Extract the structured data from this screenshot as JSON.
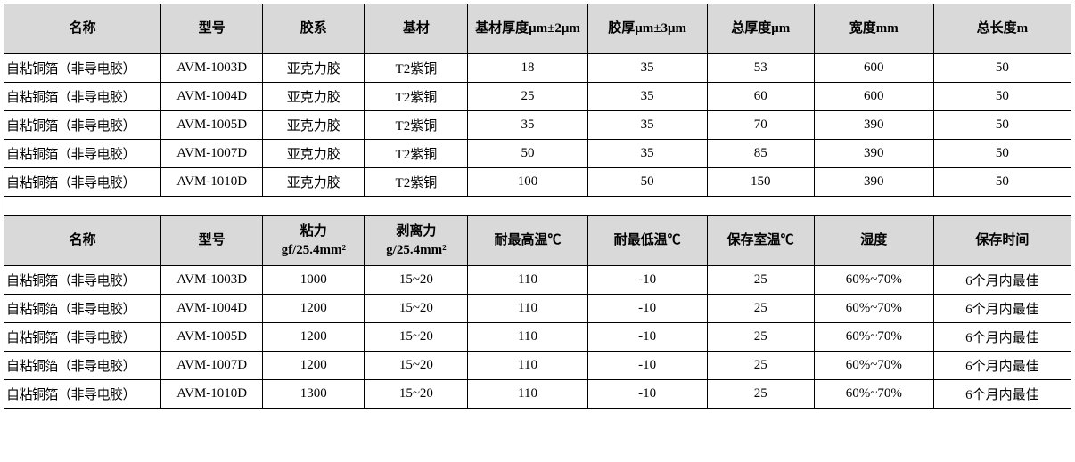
{
  "table1": {
    "headers": [
      "名称",
      "型号",
      "胶系",
      "基材",
      "基材厚度μm±2μm",
      "胶厚μm±3μm",
      "总厚度μm",
      "宽度mm",
      "总长度m"
    ],
    "rows": [
      [
        "自粘铜箔（非导电胶）",
        "AVM-1003D",
        "亚克力胶",
        "T2紫铜",
        "18",
        "35",
        "53",
        "600",
        "50"
      ],
      [
        "自粘铜箔（非导电胶）",
        "AVM-1004D",
        "亚克力胶",
        "T2紫铜",
        "25",
        "35",
        "60",
        "600",
        "50"
      ],
      [
        "自粘铜箔（非导电胶）",
        "AVM-1005D",
        "亚克力胶",
        "T2紫铜",
        "35",
        "35",
        "70",
        "390",
        "50"
      ],
      [
        "自粘铜箔（非导电胶）",
        "AVM-1007D",
        "亚克力胶",
        "T2紫铜",
        "50",
        "35",
        "85",
        "390",
        "50"
      ],
      [
        "自粘铜箔（非导电胶）",
        "AVM-1010D",
        "亚克力胶",
        "T2紫铜",
        "100",
        "50",
        "150",
        "390",
        "50"
      ]
    ]
  },
  "table2": {
    "headers": [
      "名称",
      "型号",
      "粘力\ngf/25.4mm²",
      "剥离力\ng/25.4mm²",
      "耐最高温℃",
      "耐最低温℃",
      "保存室温℃",
      "湿度",
      "保存时间"
    ],
    "rows": [
      [
        "自粘铜箔（非导电胶）",
        "AVM-1003D",
        "1000",
        "15~20",
        "110",
        "-10",
        "25",
        "60%~70%",
        "6个月内最佳"
      ],
      [
        "自粘铜箔（非导电胶）",
        "AVM-1004D",
        "1200",
        "15~20",
        "110",
        "-10",
        "25",
        "60%~70%",
        "6个月内最佳"
      ],
      [
        "自粘铜箔（非导电胶）",
        "AVM-1005D",
        "1200",
        "15~20",
        "110",
        "-10",
        "25",
        "60%~70%",
        "6个月内最佳"
      ],
      [
        "自粘铜箔（非导电胶）",
        "AVM-1007D",
        "1200",
        "15~20",
        "110",
        "-10",
        "25",
        "60%~70%",
        "6个月内最佳"
      ],
      [
        "自粘铜箔（非导电胶）",
        "AVM-1010D",
        "1300",
        "15~20",
        "110",
        "-10",
        "25",
        "60%~70%",
        "6个月内最佳"
      ]
    ]
  },
  "colors": {
    "header_bg": "#d9d9d9",
    "border": "#000000",
    "text": "#000000",
    "bg": "#ffffff"
  }
}
